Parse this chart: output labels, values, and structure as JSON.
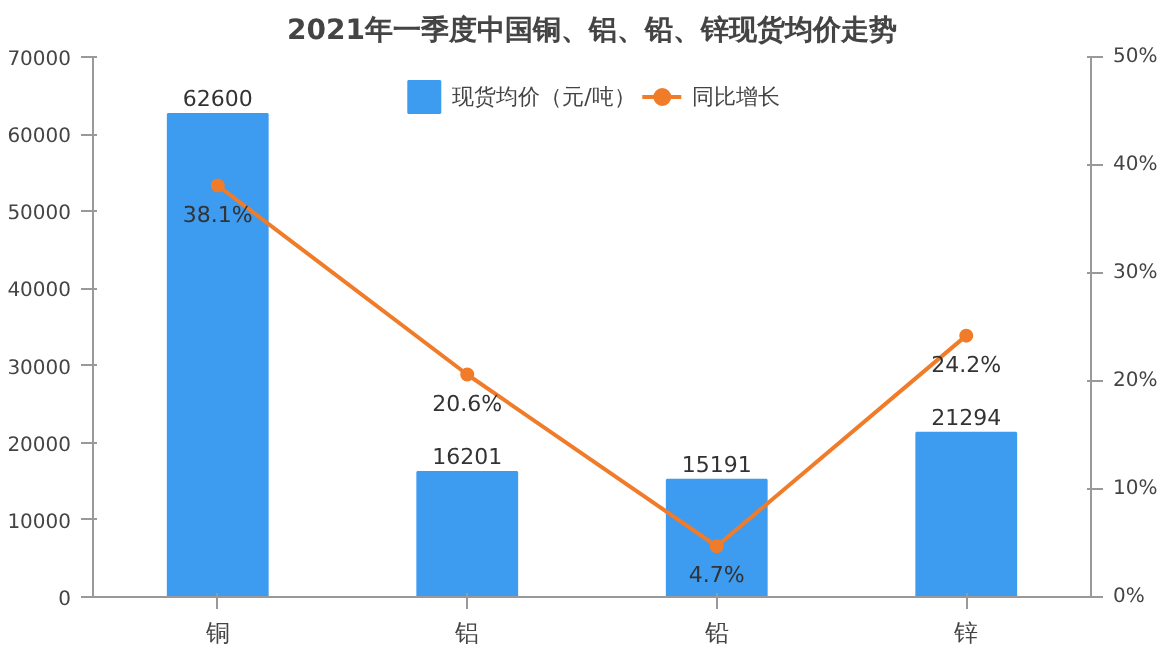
{
  "chart_data": {
    "type": "bar",
    "title": "2021年一季度中国铜、铝、铅、锌现货均价走势",
    "categories": [
      "铜",
      "铝",
      "铅",
      "锌"
    ],
    "series": [
      {
        "name": "现货均价（元/吨）",
        "color": "#3d9bf0",
        "values": [
          62600,
          16201,
          15191,
          21294
        ],
        "value_labels": [
          "62600",
          "16201",
          "15191",
          "21294"
        ]
      },
      {
        "name": "同比增长",
        "type": "line",
        "axis": "y2",
        "color": "#f07c2a",
        "marker": "circle",
        "values": [
          38.1,
          20.6,
          4.7,
          24.2
        ],
        "value_labels": [
          "38.1%",
          "20.6%",
          "4.7%",
          "24.2%"
        ]
      }
    ],
    "ylim": [
      0,
      70000
    ],
    "yticks": [
      0,
      10000,
      20000,
      30000,
      40000,
      50000,
      60000,
      70000
    ],
    "y2lim": [
      0,
      50
    ],
    "y2ticks": [
      {
        "value": 0,
        "label": "0%"
      },
      {
        "value": 10,
        "label": "10%"
      },
      {
        "value": 20,
        "label": "20%"
      },
      {
        "value": 30,
        "label": "30%"
      },
      {
        "value": 40,
        "label": "40%"
      },
      {
        "value": 50,
        "label": "50%"
      }
    ],
    "legend": "top"
  }
}
